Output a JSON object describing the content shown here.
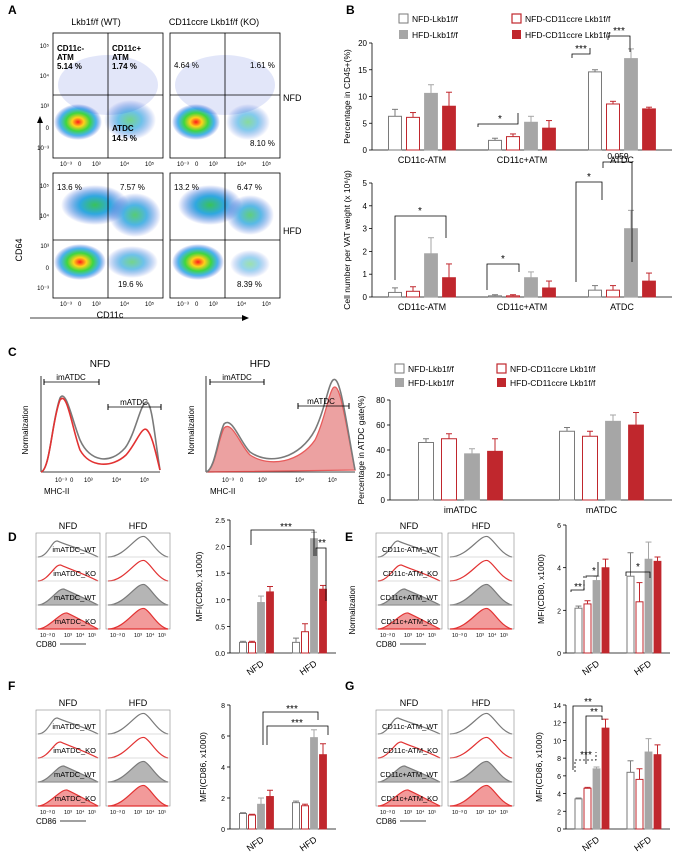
{
  "panels": {
    "A": {
      "label": "A",
      "col_wt": "Lkb1f/f (WT)",
      "col_ko": "CD11ccre Lkb1f/f (KO)",
      "row_nfd": "NFD",
      "row_hfd": "HFD",
      "y_axis": "CD64",
      "x_axis": "CD11c",
      "gate_names": {
        "cd11c_neg": "CD11c-",
        "cd11c_pos": "CD11c+",
        "atm": "ATM",
        "atdc": "ATDC"
      },
      "nfd_wt": {
        "q_ul": "5.14 %",
        "q_ur": "1.74 %",
        "q_lr": "14.5 %"
      },
      "nfd_ko": {
        "q_ul": "4.64 %",
        "q_ur": "1.61 %",
        "q_lr": "8.10 %"
      },
      "hfd_wt": {
        "q_ul": "13.6 %",
        "q_ur": "7.57 %",
        "q_lr": "19.6 %"
      },
      "hfd_ko": {
        "q_ul": "13.2 %",
        "q_ur": "6.47 %",
        "q_lr": "8.39 %"
      },
      "tick_y": [
        "10⁵",
        "10⁴",
        "10³",
        "0",
        "10⁻³"
      ],
      "tick_x": [
        "10⁻³",
        "0",
        "10³",
        "10⁴",
        "10⁵"
      ]
    },
    "B": {
      "label": "B",
      "sig_top": [
        "*",
        "***",
        "***"
      ],
      "sig_bottom": [
        "*",
        "*",
        "*",
        "0.059"
      ]
    },
    "C": {
      "label": "C",
      "nfd_title": "NFD",
      "hfd_title": "HFD",
      "gate_im": "imATDC",
      "gate_m": "mATDC",
      "x_axis": "MHC-II",
      "y_axis": "Normalization",
      "ticks": [
        "10⁻³",
        "0",
        "10³",
        "10⁴",
        "10⁵"
      ]
    },
    "D": {
      "label": "D",
      "nfd": "NFD",
      "hfd": "HFD",
      "rows": [
        "imATDC_WT",
        "imATDC_KO",
        "mATDC_WT",
        "mATDC_KO"
      ],
      "x_axis": "CD80",
      "sig": [
        "***",
        "**"
      ]
    },
    "E": {
      "label": "E",
      "nfd": "NFD",
      "hfd": "HFD",
      "rows": [
        "CD11c-ATM_WT",
        "CD11c-ATM_KO",
        "CD11c+ATM_WT",
        "CD11c+ATM_KO"
      ],
      "y_axis": "Normalization",
      "x_axis": "CD80",
      "sig": [
        "**",
        "*",
        "*"
      ]
    },
    "F": {
      "label": "F",
      "nfd": "NFD",
      "hfd": "HFD",
      "rows": [
        "imATDC_WT",
        "imATDC_KO",
        "mATDC_WT",
        "mATDC_KO"
      ],
      "x_axis": "CD86",
      "sig": [
        "***",
        "***"
      ]
    },
    "G": {
      "label": "G",
      "nfd": "NFD",
      "hfd": "HFD",
      "rows": [
        "CD11c-ATM_WT",
        "CD11c-ATM_KO",
        "CD11c+ATM_WT",
        "CD11c+ATM_KO"
      ],
      "x_axis": "CD86",
      "sig": [
        "**",
        "**",
        "***"
      ]
    }
  },
  "legend": [
    "NFD-Lkb1f/f",
    "NFD-CD11ccre Lkb1f/f",
    "HFD-Lkb1f/f",
    "HFD-CD11ccre Lkb1f/f"
  ],
  "colors": {
    "nfd_wt": "#ffffff",
    "nfd_ko": "#ffffff",
    "hfd_wt": "#a6a6a6",
    "hfd_ko": "#c0272d",
    "edge_wt": "#7a7a7a",
    "edge_ko": "#c0272d"
  },
  "chart_data": [
    {
      "id": "B1",
      "type": "bar",
      "title": "",
      "ylabel": "Percentage in CD45+(%)",
      "categories": [
        "CD11c-ATM",
        "CD11c+ATM",
        "ATDC"
      ],
      "ylim": [
        0,
        20
      ],
      "yticks": [
        0,
        5,
        10,
        15,
        20
      ],
      "series": [
        {
          "name": "NFD-Lkb1f/f",
          "values": [
            6.3,
            1.8,
            14.6
          ],
          "err": [
            1.3,
            0.4,
            0.4
          ]
        },
        {
          "name": "NFD-CD11ccre Lkb1f/f",
          "values": [
            6.1,
            2.5,
            8.6
          ],
          "err": [
            0.9,
            0.5,
            0.5
          ]
        },
        {
          "name": "HFD-Lkb1f/f",
          "values": [
            10.6,
            5.2,
            17.1
          ],
          "err": [
            1.6,
            1.1,
            1.8
          ]
        },
        {
          "name": "HFD-CD11ccre Lkb1f/f",
          "values": [
            8.2,
            4.1,
            7.7
          ],
          "err": [
            2.6,
            1.4,
            0.3
          ]
        }
      ]
    },
    {
      "id": "B2",
      "type": "bar",
      "title": "",
      "ylabel": "Cell number per VAT weight (x 10⁶/g)",
      "categories": [
        "CD11c-ATM",
        "CD11c+ATM",
        "ATDC"
      ],
      "ylim": [
        0,
        5
      ],
      "yticks": [
        0,
        1,
        2,
        3,
        4,
        5
      ],
      "series": [
        {
          "name": "NFD-Lkb1f/f",
          "values": [
            0.2,
            0.05,
            0.3
          ],
          "err": [
            0.2,
            0.05,
            0.2
          ]
        },
        {
          "name": "NFD-CD11ccre Lkb1f/f",
          "values": [
            0.25,
            0.05,
            0.3
          ],
          "err": [
            0.2,
            0.05,
            0.2
          ]
        },
        {
          "name": "HFD-Lkb1f/f",
          "values": [
            1.9,
            0.85,
            3.0
          ],
          "err": [
            0.7,
            0.25,
            0.8
          ]
        },
        {
          "name": "HFD-CD11ccre Lkb1f/f",
          "values": [
            0.85,
            0.4,
            0.7
          ],
          "err": [
            0.6,
            0.3,
            0.35
          ]
        }
      ]
    },
    {
      "id": "C",
      "type": "bar",
      "title": "",
      "ylabel": "Percentage in ATDC gate(%)",
      "categories": [
        "imATDC",
        "mATDC"
      ],
      "ylim": [
        0,
        80
      ],
      "yticks": [
        0,
        20,
        40,
        60,
        80
      ],
      "series": [
        {
          "name": "NFD-Lkb1f/f",
          "values": [
            46,
            55
          ],
          "err": [
            3,
            3
          ]
        },
        {
          "name": "NFD-CD11ccre Lkb1f/f",
          "values": [
            49,
            51
          ],
          "err": [
            4,
            4
          ]
        },
        {
          "name": "HFD-Lkb1f/f",
          "values": [
            37,
            63
          ],
          "err": [
            4,
            5
          ]
        },
        {
          "name": "HFD-CD11ccre Lkb1f/f",
          "values": [
            39,
            60
          ],
          "err": [
            10,
            10
          ]
        }
      ]
    },
    {
      "id": "D",
      "type": "bar",
      "title": "",
      "ylabel": "MFI(CD80, x1000)",
      "categories": [
        "NFD",
        "HFD"
      ],
      "ylim": [
        0,
        2.5
      ],
      "yticks": [
        0.0,
        0.5,
        1.0,
        1.5,
        2.0,
        2.5
      ],
      "xgroups": [
        "imATDC",
        "mATDC"
      ],
      "series": [
        {
          "name": "NFD imATDC WT",
          "values": [
            0.2,
            0.2
          ],
          "err": [
            0.02,
            0.08
          ]
        },
        {
          "name": "NFD imATDC KO",
          "values": [
            0.2,
            0.4
          ],
          "err": [
            0.02,
            0.15
          ]
        },
        {
          "name": "mATDC WT",
          "values": [
            0.95,
            2.15
          ],
          "err": [
            0.12,
            0.12
          ]
        },
        {
          "name": "mATDC KO",
          "values": [
            1.15,
            1.2
          ],
          "err": [
            0.1,
            0.07
          ]
        }
      ]
    },
    {
      "id": "E",
      "type": "bar",
      "title": "",
      "ylabel": "MFI(CD80, x1000)",
      "categories": [
        "NFD",
        "HFD"
      ],
      "ylim": [
        0,
        6
      ],
      "yticks": [
        0,
        2,
        4,
        6
      ],
      "series": [
        {
          "name": "CD11c-ATM WT",
          "values": [
            2.1,
            3.6
          ],
          "err": [
            0.1,
            1.1
          ]
        },
        {
          "name": "CD11c-ATM KO",
          "values": [
            2.3,
            2.4
          ],
          "err": [
            0.15,
            0.9
          ]
        },
        {
          "name": "CD11c+ATM WT",
          "values": [
            3.4,
            4.4
          ],
          "err": [
            0.2,
            0.8
          ]
        },
        {
          "name": "CD11c+ATM KO",
          "values": [
            4.0,
            4.3
          ],
          "err": [
            0.4,
            0.2
          ]
        }
      ]
    },
    {
      "id": "F",
      "type": "bar",
      "title": "",
      "ylabel": "MFI(CD86, x1000)",
      "categories": [
        "NFD",
        "HFD"
      ],
      "ylim": [
        0,
        8
      ],
      "yticks": [
        0,
        2,
        4,
        6,
        8
      ],
      "series": [
        {
          "name": "imATDC WT",
          "values": [
            1.0,
            1.7
          ],
          "err": [
            0.05,
            0.1
          ]
        },
        {
          "name": "imATDC KO",
          "values": [
            0.9,
            1.5
          ],
          "err": [
            0.05,
            0.1
          ]
        },
        {
          "name": "mATDC WT",
          "values": [
            1.6,
            5.9
          ],
          "err": [
            0.4,
            0.5
          ]
        },
        {
          "name": "mATDC KO",
          "values": [
            2.1,
            4.8
          ],
          "err": [
            0.4,
            0.7
          ]
        }
      ]
    },
    {
      "id": "G",
      "type": "bar",
      "title": "",
      "ylabel": "MFI(CD86, x1000)",
      "categories": [
        "NFD",
        "HFD"
      ],
      "ylim": [
        0,
        14
      ],
      "yticks": [
        0,
        2,
        4,
        6,
        8,
        10,
        12,
        14
      ],
      "series": [
        {
          "name": "CD11c-ATM WT",
          "values": [
            3.4,
            6.4
          ],
          "err": [
            0.1,
            1.3
          ]
        },
        {
          "name": "CD11c-ATM KO",
          "values": [
            4.6,
            5.6
          ],
          "err": [
            0.1,
            1.2
          ]
        },
        {
          "name": "CD11c+ATM WT",
          "values": [
            6.8,
            8.7
          ],
          "err": [
            0.2,
            1.5
          ]
        },
        {
          "name": "CD11c+ATM KO",
          "values": [
            11.4,
            8.4
          ],
          "err": [
            1.0,
            1.1
          ]
        }
      ]
    }
  ]
}
